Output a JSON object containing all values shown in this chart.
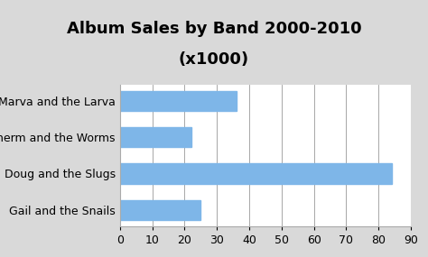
{
  "title_line1": "Album Sales by Band 2000-2010",
  "title_line2": "(x1000)",
  "categories": [
    "Gail and the Snails",
    "Doug and the Slugs",
    "Sherm and the Worms",
    "Marva and the Larva"
  ],
  "values": [
    25,
    84,
    22,
    36
  ],
  "bar_color": "#7EB6E8",
  "xlim": [
    0,
    90
  ],
  "xticks": [
    0,
    10,
    20,
    30,
    40,
    50,
    60,
    70,
    80,
    90
  ],
  "background_color": "#d9d9d9",
  "plot_bg_color": "#ffffff",
  "title_fontsize": 13,
  "tick_fontsize": 9,
  "label_fontsize": 9,
  "bar_height": 0.55
}
